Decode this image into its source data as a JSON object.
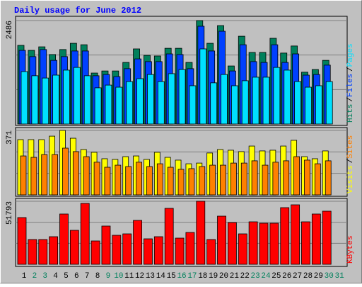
{
  "chart_data": [
    {
      "type": "bar",
      "title": "Daily usage for June 2012",
      "legend_separator": "/",
      "categories": [
        "1",
        "2",
        "3",
        "4",
        "5",
        "6",
        "7",
        "8",
        "9",
        "10",
        "11",
        "12",
        "13",
        "14",
        "15",
        "16",
        "17",
        "18",
        "19",
        "20",
        "21",
        "22",
        "23",
        "24",
        "25",
        "26",
        "27",
        "28",
        "29",
        "30",
        "31"
      ],
      "ylim": [
        0,
        2486
      ],
      "yticks": [
        2486
      ],
      "series": [
        {
          "name": "Hits",
          "color": "#00805c",
          "values": [
            1890,
            1770,
            1855,
            1670,
            1790,
            1940,
            1905,
            1225,
            1275,
            1275,
            1480,
            1805,
            1650,
            1635,
            1820,
            1820,
            1480,
            2486,
            1940,
            2365,
            1395,
            2110,
            1720,
            1720,
            2060,
            1705,
            1875,
            1245,
            1310,
            1530,
            null
          ]
        },
        {
          "name": "Files",
          "color": "#0040ff",
          "values": [
            1770,
            1620,
            1790,
            1530,
            1620,
            1755,
            1755,
            1160,
            1190,
            1140,
            1330,
            1565,
            1500,
            1500,
            1685,
            1670,
            1330,
            2350,
            1755,
            2230,
            1275,
            1905,
            1500,
            1480,
            1905,
            1480,
            1685,
            1175,
            1190,
            1415,
            null
          ]
        },
        {
          "name": "Pages",
          "color": "#00e0ff",
          "values": [
            1260,
            1160,
            1105,
            1175,
            1295,
            1360,
            1160,
            870,
            935,
            885,
            1020,
            1090,
            1190,
            1020,
            1210,
            1310,
            920,
            1805,
            990,
            1190,
            920,
            1040,
            1125,
            1125,
            1360,
            1295,
            1020,
            885,
            920,
            1020,
            null
          ]
        }
      ]
    },
    {
      "type": "bar",
      "legend_separator": "/",
      "categories": [
        "1",
        "2",
        "3",
        "4",
        "5",
        "6",
        "7",
        "8",
        "9",
        "10",
        "11",
        "12",
        "13",
        "14",
        "15",
        "16",
        "17",
        "18",
        "19",
        "20",
        "21",
        "22",
        "23",
        "24",
        "25",
        "26",
        "27",
        "28",
        "29",
        "30",
        "31"
      ],
      "ylim": [
        0,
        371
      ],
      "yticks": [
        371
      ],
      "series": [
        {
          "name": "Visits",
          "color": "#ffff00",
          "values": [
            318,
            318,
            318,
            338,
            371,
            326,
            261,
            245,
            208,
            204,
            220,
            224,
            204,
            245,
            216,
            200,
            179,
            183,
            241,
            261,
            257,
            249,
            281,
            253,
            257,
            281,
            314,
            220,
            208,
            253,
            null
          ]
        },
        {
          "name": "Sites",
          "color": "#ff8000",
          "values": [
            224,
            216,
            232,
            232,
            269,
            249,
            220,
            188,
            159,
            171,
            163,
            188,
            163,
            179,
            159,
            147,
            151,
            163,
            171,
            171,
            183,
            183,
            196,
            171,
            188,
            196,
            220,
            200,
            179,
            196,
            null
          ]
        }
      ]
    },
    {
      "type": "bar",
      "categories": [
        "1",
        "2",
        "3",
        "4",
        "5",
        "6",
        "7",
        "8",
        "9",
        "10",
        "11",
        "12",
        "13",
        "14",
        "15",
        "16",
        "17",
        "18",
        "19",
        "20",
        "21",
        "22",
        "23",
        "24",
        "25",
        "26",
        "27",
        "28",
        "29",
        "30",
        "31"
      ],
      "category_colors": [
        "#000000",
        "#00805c",
        "#00805c",
        "#000000",
        "#000000",
        "#000000",
        "#000000",
        "#000000",
        "#00805c",
        "#00805c",
        "#000000",
        "#000000",
        "#000000",
        "#000000",
        "#000000",
        "#00805c",
        "#00805c",
        "#000000",
        "#000000",
        "#000000",
        "#000000",
        "#000000",
        "#00805c",
        "#00805c",
        "#000000",
        "#000000",
        "#000000",
        "#000000",
        "#000000",
        "#00805c",
        "#00805c"
      ],
      "ylim": [
        0,
        51793
      ],
      "yticks": [
        51793
      ],
      "series": [
        {
          "name": "KBytes",
          "color": "#ff0000",
          "values": [
            38410,
            20370,
            20370,
            22700,
            41320,
            27930,
            50050,
            19200,
            31430,
            23860,
            25020,
            36080,
            20950,
            22700,
            45970,
            21530,
            26190,
            51793,
            20370,
            39570,
            34340,
            25020,
            34920,
            33750,
            33750,
            46560,
            48880,
            34920,
            41320,
            43650,
            null
          ]
        }
      ]
    }
  ]
}
